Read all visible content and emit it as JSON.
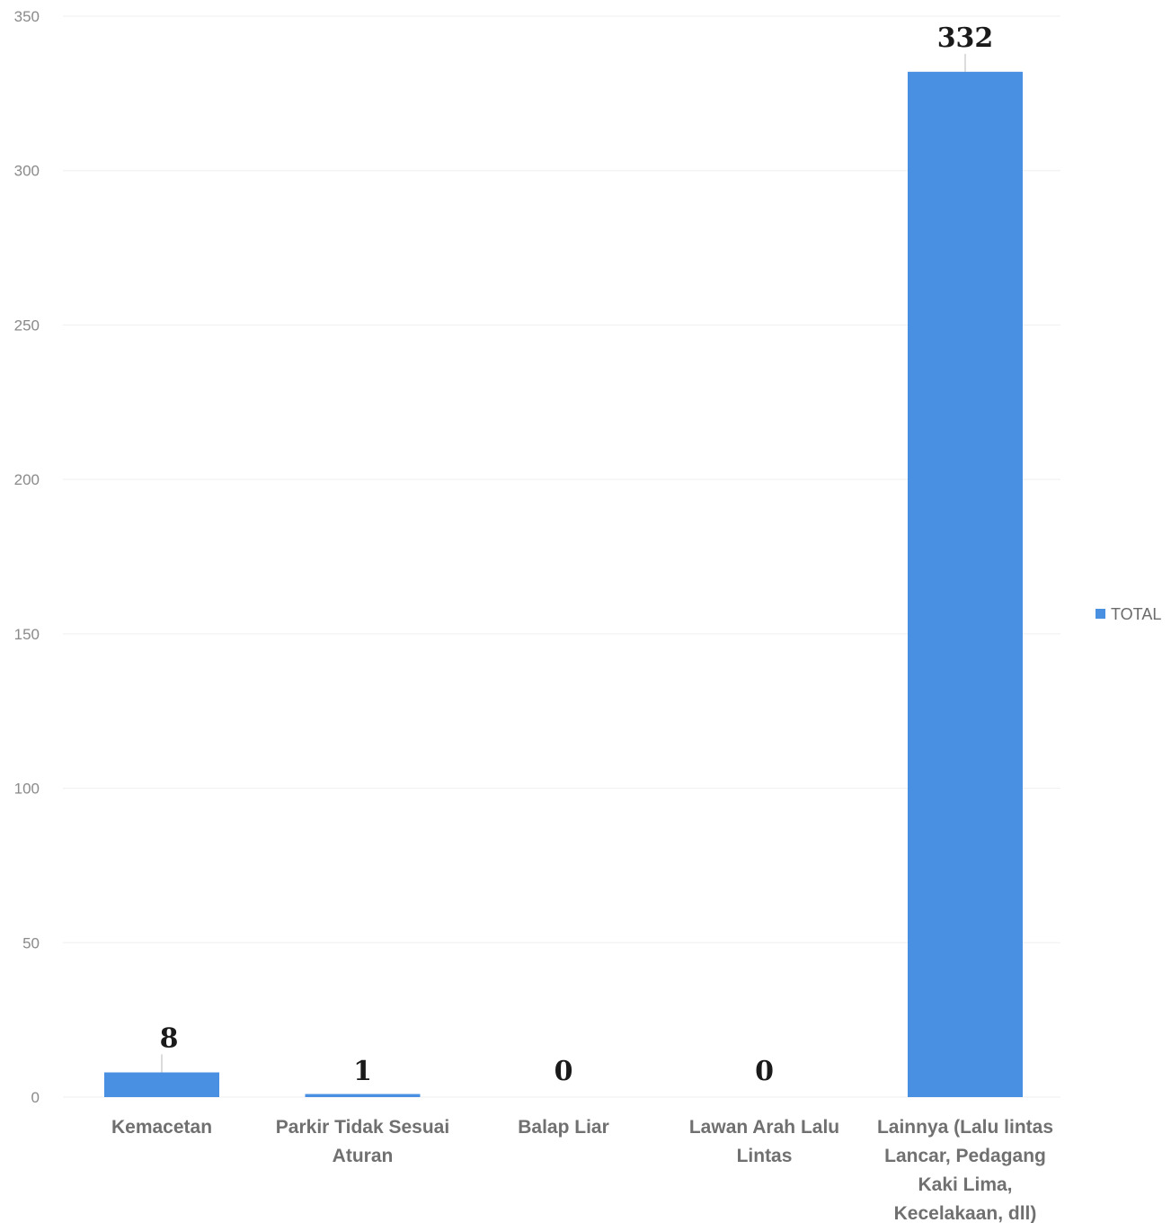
{
  "chart_data": {
    "type": "bar",
    "categories": [
      "Kemacetan",
      "Parkir Tidak Sesuai Aturan",
      "Balap Liar",
      "Lawan Arah Lalu Lintas",
      "Lainnya (Lalu lintas Lancar, Pedagang Kaki Lima, Kecelakaan, dll)"
    ],
    "category_lines": [
      [
        "Kemacetan"
      ],
      [
        "Parkir Tidak Sesuai",
        "Aturan"
      ],
      [
        "Balap Liar"
      ],
      [
        "Lawan Arah Lalu",
        "Lintas"
      ],
      [
        "Lainnya (Lalu lintas",
        "Lancar, Pedagang",
        "Kaki Lima,",
        "Kecelakaan, dll)"
      ]
    ],
    "series": [
      {
        "name": "TOTAL",
        "values": [
          8,
          1,
          0,
          0,
          332
        ]
      }
    ],
    "data_labels": [
      "8",
      "1",
      "0",
      "0",
      "332"
    ],
    "ylim": [
      0,
      350
    ],
    "yticks": [
      0,
      50,
      100,
      150,
      200,
      250,
      300,
      350
    ],
    "ytick_labels": [
      "0",
      "50",
      "100",
      "150",
      "200",
      "250",
      "300",
      "350"
    ],
    "title": "",
    "xlabel": "",
    "ylabel": "",
    "grid": true,
    "legend_position": "right",
    "colors": {
      "bar": "#4a90e2",
      "grid": "#efefef"
    }
  }
}
